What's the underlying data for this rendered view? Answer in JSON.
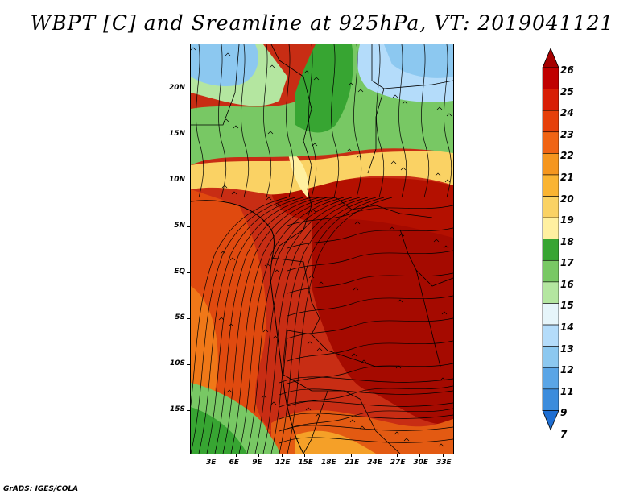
{
  "title": "WBPT [C] and Sreamline at 925hPa, VT: 2019041121",
  "footer": "GrADS: IGES/COLA",
  "lat_labels": [
    "20N",
    "15N",
    "10N",
    "5N",
    "EQ",
    "5S",
    "10S",
    "15S"
  ],
  "lon_labels": [
    "3E",
    "6E",
    "9E",
    "12E",
    "15E",
    "18E",
    "21E",
    "24E",
    "27E",
    "30E",
    "33E"
  ],
  "colorbar": {
    "labels": [
      "26",
      "25",
      "24",
      "23",
      "22",
      "21",
      "20",
      "19",
      "18",
      "17",
      "16",
      "15",
      "14",
      "13",
      "12",
      "11",
      "9",
      "7"
    ],
    "colors": [
      "#a50000",
      "#c00000",
      "#d81e05",
      "#e6400a",
      "#f06414",
      "#f5961e",
      "#fab432",
      "#fad264",
      "#fff0a0",
      "#37a532",
      "#78c864",
      "#b4e6a0",
      "#e6f5fa",
      "#b4dcfa",
      "#8cc8f0",
      "#5aa5e6",
      "#3c8cdc",
      "#1e6ed2"
    ]
  },
  "map_fields": {
    "variable": "wet-bulb potential temperature",
    "unit": "C",
    "level": "925hPa",
    "valid_time": "2019041121",
    "region_summary": "warm core 24-26 over central Africa, cooler 13-17 to the north over the Sahara and southwest over Angola/Namibia"
  }
}
